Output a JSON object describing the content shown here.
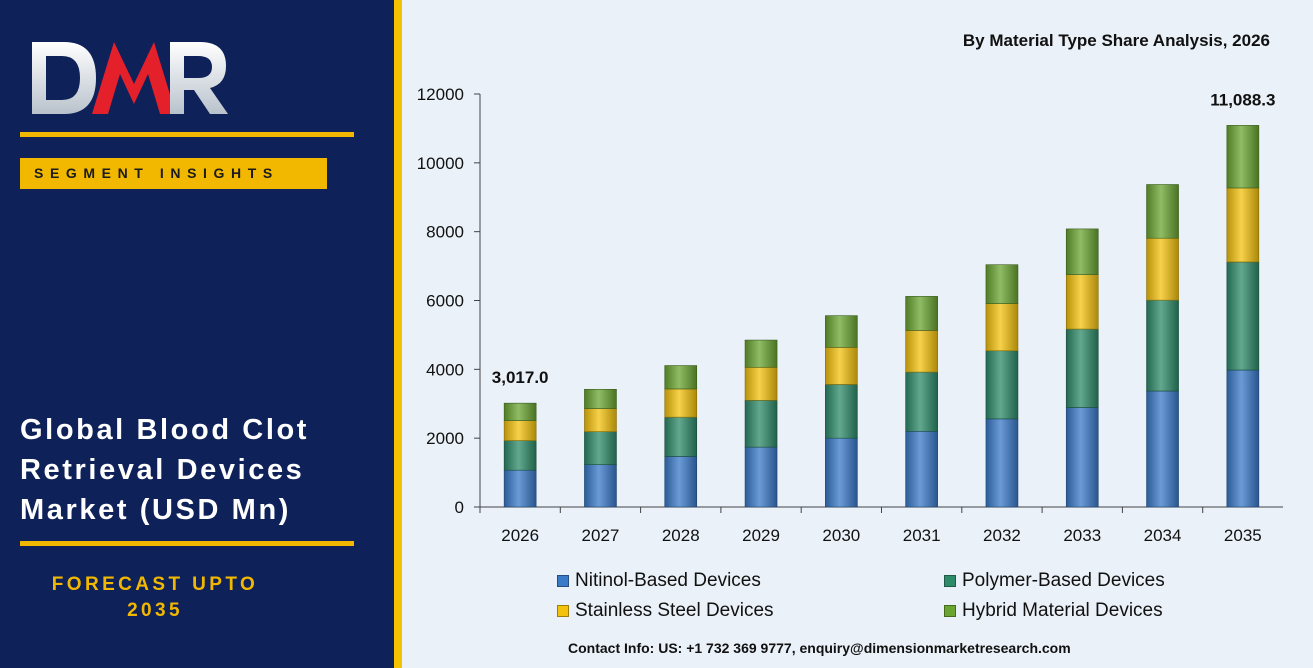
{
  "brand": {
    "logo_text": "DMR"
  },
  "left_panel": {
    "badge": "SEGMENT INSIGHTS",
    "market_title_lines": [
      "Global Blood Clot",
      "Retrieval Devices",
      "Market (USD Mn)"
    ],
    "forecast_lines": [
      "FORECAST UPTO",
      "2035"
    ]
  },
  "contact": "Contact Info: US: +1 732 369 9777, enquiry@dimensionmarketresearch.com",
  "chart_data": {
    "type": "bar",
    "stacked": true,
    "title": "By Material Type Share Analysis, 2026",
    "xlabel": "",
    "ylabel": "",
    "categories": [
      "2026",
      "2027",
      "2028",
      "2029",
      "2030",
      "2031",
      "2032",
      "2033",
      "2034",
      "2035"
    ],
    "ylim": [
      0,
      12000
    ],
    "yticks": [
      0,
      2000,
      4000,
      6000,
      8000,
      10000,
      12000
    ],
    "series": [
      {
        "name": "Nitinol-Based Devices",
        "color": "#3a7ac9",
        "values": [
          1070,
          1230,
          1470,
          1740,
          2000,
          2200,
          2560,
          2890,
          3370,
          3980
        ]
      },
      {
        "name": "Polymer-Based Devices",
        "color": "#2e8b6a",
        "values": [
          860,
          960,
          1140,
          1360,
          1560,
          1720,
          1980,
          2280,
          2640,
          3140
        ]
      },
      {
        "name": "Stainless Steel Devices",
        "color": "#f4c20d",
        "values": [
          580,
          670,
          820,
          960,
          1080,
          1210,
          1370,
          1580,
          1800,
          2150
        ]
      },
      {
        "name": "Hybrid Material Devices",
        "color": "#6aa531",
        "values": [
          507,
          560,
          680,
          790,
          920,
          990,
          1130,
          1330,
          1560,
          1818.3
        ]
      }
    ],
    "data_labels": [
      {
        "category": "2026",
        "text": "3,017.0"
      },
      {
        "category": "2035",
        "text": "11,088.3"
      }
    ],
    "legend": {
      "placement": "bottom",
      "columns": 2
    },
    "grid": false
  }
}
